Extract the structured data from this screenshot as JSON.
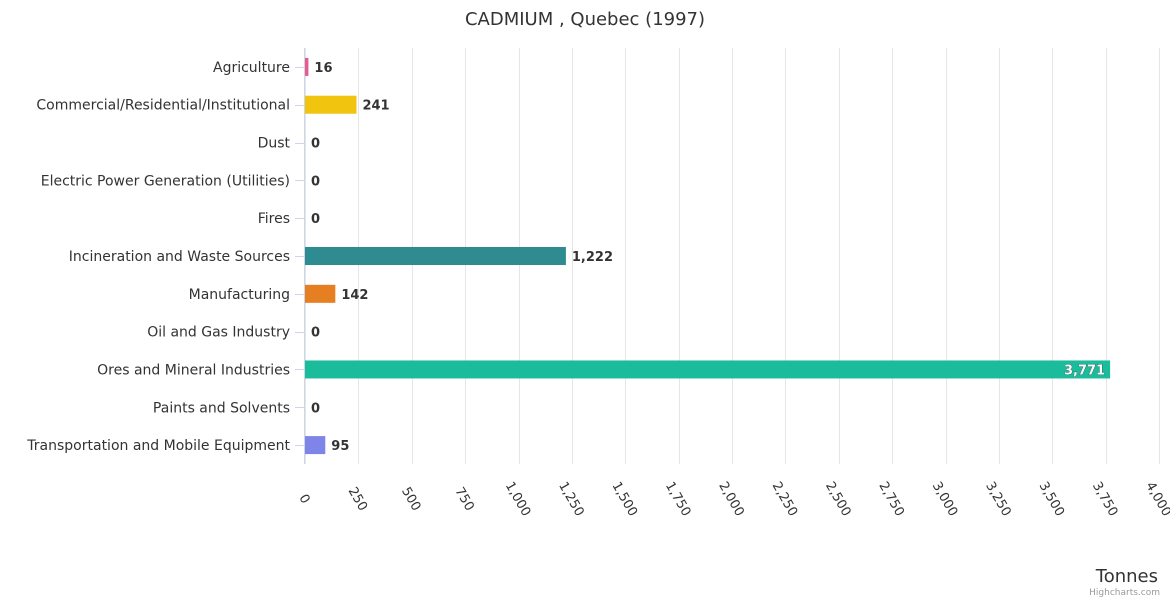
{
  "chart_data": {
    "type": "bar",
    "orientation": "horizontal",
    "title": "CADMIUM , Quebec (1997)",
    "xlabel": "",
    "ylabel": "Tonnes",
    "credits": "Highcharts.com",
    "xlim": [
      0,
      4000
    ],
    "grid": true,
    "categories": [
      "Agriculture",
      "Commercial/Residential/Institutional",
      "Dust",
      "Electric Power Generation (Utilities)",
      "Fires",
      "Incineration and Waste Sources",
      "Manufacturing",
      "Oil and Gas Industry",
      "Ores and Mineral Industries",
      "Paints and Solvents",
      "Transportation and Mobile Equipment"
    ],
    "values": [
      16,
      241,
      0,
      0,
      0,
      1222,
      142,
      0,
      3771,
      0,
      95
    ],
    "value_labels": [
      "16",
      "241",
      "0",
      "0",
      "0",
      "1,222",
      "142",
      "0",
      "3,771",
      "0",
      "95"
    ],
    "colors": [
      "#e75c8f",
      "#f1c40f",
      "#2c3e50",
      "#9b59b6",
      "#e74c3c",
      "#2e8b8f",
      "#e67e22",
      "#34495e",
      "#1abc9c",
      "#3498db",
      "#7f84e8"
    ],
    "ticks": [
      0,
      250,
      500,
      750,
      1000,
      1250,
      1500,
      1750,
      2000,
      2250,
      2500,
      2750,
      3000,
      3250,
      3500,
      3750,
      4000
    ],
    "tick_labels": [
      "0",
      "250",
      "500",
      "750",
      "1,000",
      "1,250",
      "1,500",
      "1,750",
      "2,000",
      "2,250",
      "2,500",
      "2,750",
      "3,000",
      "3,250",
      "3,500",
      "3,750",
      "4,000"
    ]
  }
}
